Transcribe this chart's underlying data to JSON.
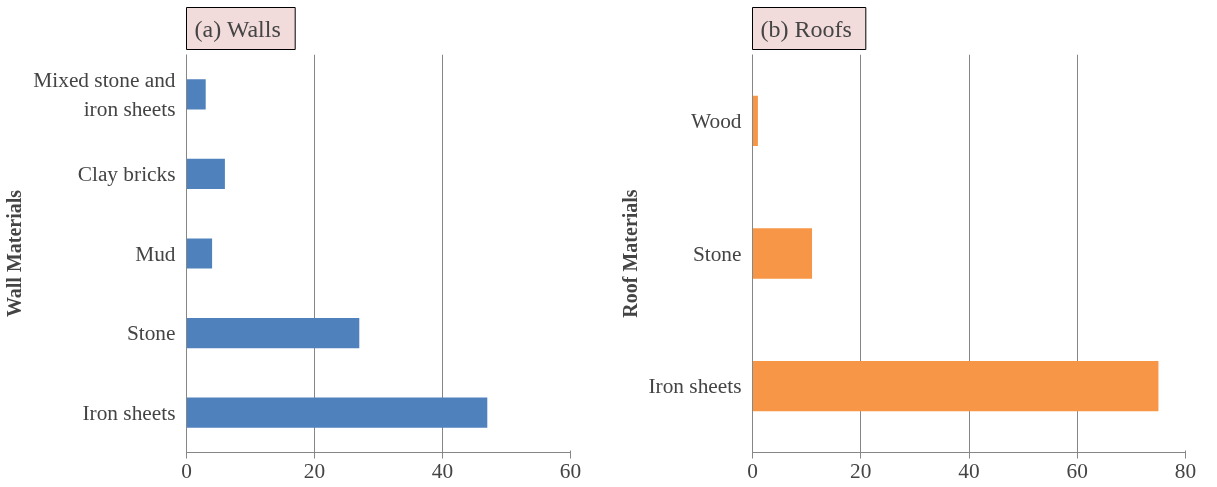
{
  "chart_data": [
    {
      "type": "bar",
      "orientation": "horizontal",
      "title": "(a)  Walls",
      "ylabel": "Wall Materials",
      "categories": [
        "Mixed stone and iron sheets",
        "Clay bricks",
        "Mud",
        "Stone",
        "Iron sheets"
      ],
      "values": [
        3,
        6,
        4,
        27,
        47
      ],
      "color": "#4f81bd",
      "xlim": [
        0,
        60
      ],
      "xticks": [
        0,
        20,
        40,
        60
      ],
      "grid": "x"
    },
    {
      "type": "bar",
      "orientation": "horizontal",
      "title": "(b)  Roofs",
      "ylabel": "Roof Materials",
      "categories": [
        "Wood",
        "Stone",
        "Iron sheets"
      ],
      "values": [
        1,
        11,
        75
      ],
      "color": "#f79646",
      "xlim": [
        0,
        80
      ],
      "xticks": [
        0,
        20,
        40,
        60,
        80
      ],
      "grid": "x"
    }
  ]
}
